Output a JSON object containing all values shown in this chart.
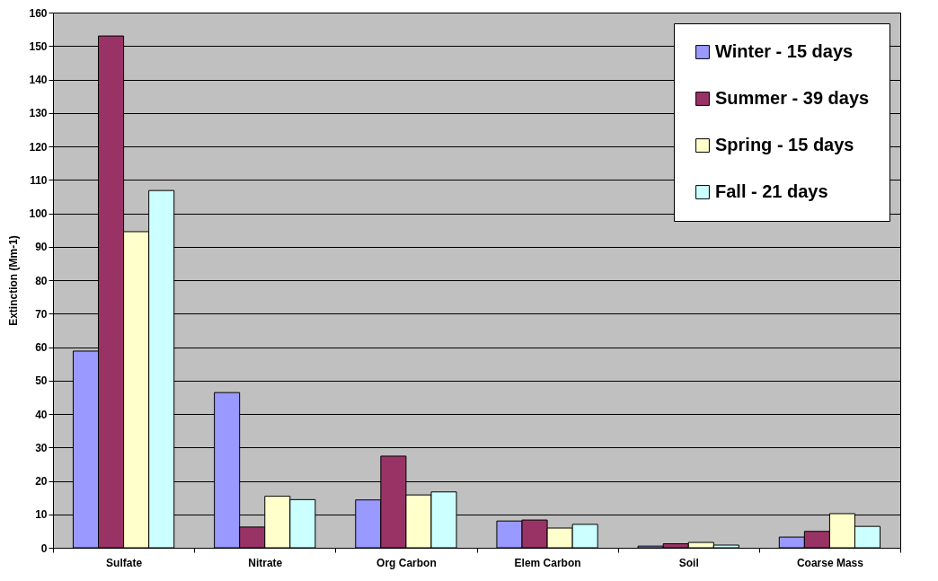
{
  "chart_data": {
    "type": "bar",
    "ylabel": "Extinction (Mm-1)",
    "categories": [
      "Sulfate",
      "Nitrate",
      "Org Carbon",
      "Elem Carbon",
      "Soil",
      "Coarse Mass"
    ],
    "series": [
      {
        "name": "Winter - 15 days",
        "color": "#9999ff",
        "values": [
          58.8,
          46.4,
          14.3,
          8.0,
          0.5,
          3.2
        ]
      },
      {
        "name": "Summer - 39 days",
        "color": "#993366",
        "values": [
          153.0,
          6.2,
          27.4,
          8.3,
          1.2,
          4.9
        ]
      },
      {
        "name": "Spring - 15 days",
        "color": "#ffffcc",
        "values": [
          94.5,
          15.4,
          15.8,
          5.9,
          1.6,
          10.2
        ]
      },
      {
        "name": "Fall - 21 days",
        "color": "#ccffff",
        "values": [
          106.8,
          14.4,
          16.7,
          7.0,
          0.8,
          6.4
        ]
      }
    ],
    "ylim": [
      0,
      160
    ],
    "yticks": [
      0,
      10,
      20,
      30,
      40,
      50,
      60,
      70,
      80,
      90,
      100,
      110,
      120,
      130,
      140,
      150,
      160
    ],
    "grid": "y",
    "legend": "top right"
  }
}
